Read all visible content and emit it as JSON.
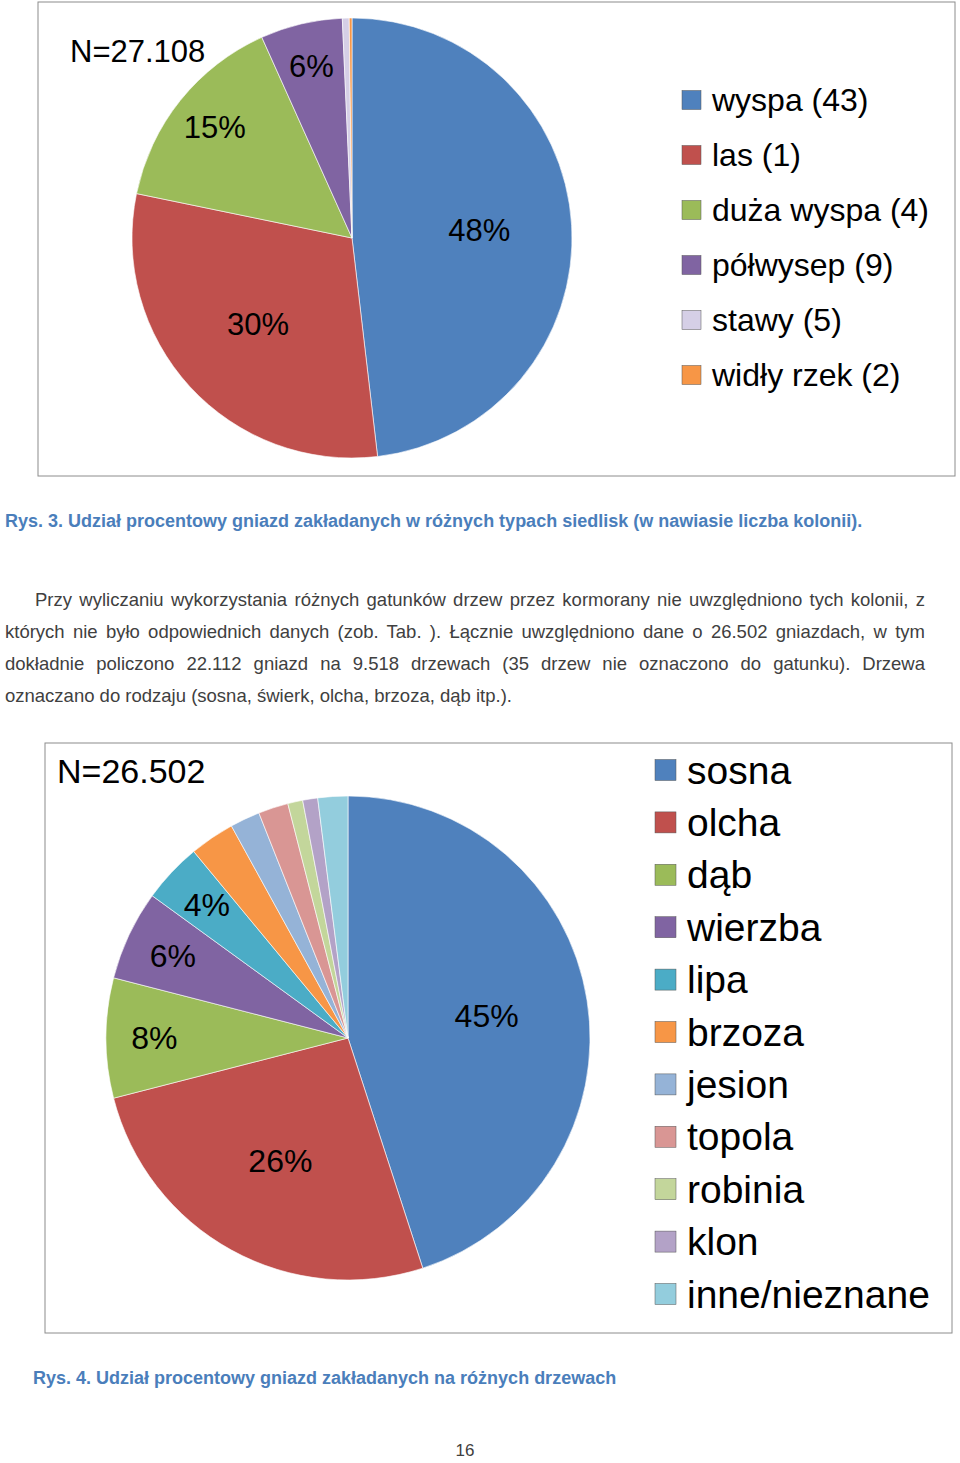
{
  "chart_data": [
    {
      "type": "pie",
      "title": "N=27.108",
      "categories": [
        "wyspa (43)",
        "las (1)",
        "duża wyspa (4)",
        "półwysep (9)",
        "stawy (5)",
        "widły rzek (2)"
      ],
      "values": [
        48,
        30,
        15,
        6,
        0.5,
        0.2
      ],
      "value_labels": [
        "48%",
        "30%",
        "15%",
        "6%",
        null,
        null
      ],
      "colors": [
        "#4f81bd",
        "#c0504d",
        "#9bbb59",
        "#8064a2",
        "#d5cfe6",
        "#f79646"
      ],
      "data_labels": true,
      "legend": "right"
    },
    {
      "type": "pie",
      "title": "N=26.502",
      "categories": [
        "sosna",
        "olcha",
        "dąb",
        "wierzba",
        "lipa",
        "brzoza",
        "jesion",
        "topola",
        "robinia",
        "klon",
        "inne/nieznane"
      ],
      "values": [
        45,
        26,
        8,
        6,
        4,
        3,
        2,
        2,
        1,
        1,
        2
      ],
      "value_labels": [
        "45%",
        "26%",
        "8%",
        "6%",
        "4%",
        null,
        null,
        null,
        null,
        null,
        null
      ],
      "colors": [
        "#4f81bd",
        "#c0504d",
        "#9bbb59",
        "#8064a2",
        "#4bacc6",
        "#f79646",
        "#95b3d7",
        "#d99694",
        "#c3d69b",
        "#b3a2c7",
        "#93cddd"
      ],
      "data_labels": true,
      "legend": "right"
    }
  ],
  "document": {
    "captions": [
      "Rys. 3. Udział procentowy gniazd zakładanych w różnych typach siedlisk (w nawiasie liczba kolonii).",
      "Rys. 4. Udział procentowy gniazd zakładanych na różnych drzewach"
    ],
    "paragraph": "Przy wyliczaniu wykorzystania różnych gatunków drzew przez kormorany nie uwzględniono tych kolonii, z których nie było odpowiednich danych (zob. Tab. ). Łącznie uwzględniono dane o 26.502 gniazdach, w tym dokładnie policzono 22.112 gniazd na 9.518 drzewach (35 drzew nie oznaczono do gatunku). Drzewa oznaczano do rodzaju (sosna, świerk, olcha, brzoza, dąb itp.).",
    "page_number": "16"
  }
}
